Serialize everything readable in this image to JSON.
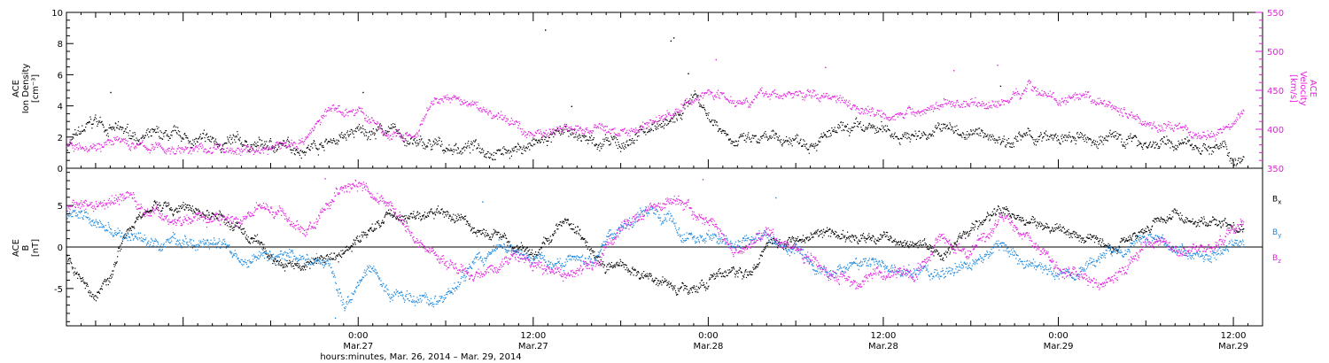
{
  "chart_data": [
    {
      "type": "scatter",
      "panel": "top",
      "ylabel_lines": [
        "ACE",
        "Ion Density",
        "[cm⁻³]"
      ],
      "ylim": [
        0,
        10
      ],
      "yticks": [
        0,
        2,
        4,
        6,
        8,
        10
      ],
      "y2label_lines": [
        "ACE",
        "Velocity",
        "[km/s]"
      ],
      "y2lim": [
        350,
        550
      ],
      "y2ticks": [
        350,
        400,
        450,
        500,
        550
      ],
      "xlim": [
        -20,
        62
      ],
      "series": [
        {
          "name": "Ion Density",
          "axis": "left",
          "color": "#000000",
          "keyframes": [
            [
              -20,
              1.5
            ],
            [
              -18,
              3.0
            ],
            [
              -16,
              2.2
            ],
            [
              -12,
              1.8
            ],
            [
              -8,
              1.5
            ],
            [
              -4,
              1.4
            ],
            [
              -2,
              1.8
            ],
            [
              0,
              2.3
            ],
            [
              2,
              2.5
            ],
            [
              4,
              1.5
            ],
            [
              6,
              1.3
            ],
            [
              8,
              1.4
            ],
            [
              10,
              1.2
            ],
            [
              12,
              1.5
            ],
            [
              14,
              2.2
            ],
            [
              16,
              1.8
            ],
            [
              18,
              1.4
            ],
            [
              20,
              2.7
            ],
            [
              22,
              3.2
            ],
            [
              23,
              5.0
            ],
            [
              24,
              3.4
            ],
            [
              26,
              1.8
            ],
            [
              28,
              1.7
            ],
            [
              30,
              1.9
            ],
            [
              32,
              2.1
            ],
            [
              34,
              2.4
            ],
            [
              36,
              2.4
            ],
            [
              38,
              2.1
            ],
            [
              40,
              2.6
            ],
            [
              42,
              2.2
            ],
            [
              44,
              2.0
            ],
            [
              46,
              2.0
            ],
            [
              48,
              1.8
            ],
            [
              50,
              1.8
            ],
            [
              52,
              2.0
            ],
            [
              54,
              1.7
            ],
            [
              56,
              1.5
            ],
            [
              59,
              1.4
            ],
            [
              60,
              0.6
            ],
            [
              60.7,
              0.8
            ]
          ],
          "noise": 0.5,
          "spikes": [
            [
              12.8,
              8.9
            ],
            [
              21.4,
              8.2
            ],
            [
              21.6,
              8.4
            ],
            [
              22.6,
              6.1
            ],
            [
              0.3,
              4.9
            ],
            [
              -17,
              4.9
            ],
            [
              14.6,
              4.0
            ],
            [
              44,
              5.3
            ]
          ]
        },
        {
          "name": "Velocity",
          "axis": "right",
          "color": "#e21fde",
          "keyframes": [
            [
              -20,
              383
            ],
            [
              -17,
              385
            ],
            [
              -15,
              378
            ],
            [
              -13,
              375
            ],
            [
              -10,
              375
            ],
            [
              -7,
              373
            ],
            [
              -4,
              385
            ],
            [
              -2,
              425
            ],
            [
              0,
              425
            ],
            [
              2,
              392
            ],
            [
              4,
              390
            ],
            [
              5,
              430
            ],
            [
              6,
              440
            ],
            [
              8,
              430
            ],
            [
              10,
              412
            ],
            [
              12,
              395
            ],
            [
              13,
              400
            ],
            [
              15,
              400
            ],
            [
              17,
              400
            ],
            [
              18,
              395
            ],
            [
              20,
              410
            ],
            [
              22,
              425
            ],
            [
              24,
              450
            ],
            [
              26,
              440
            ],
            [
              28,
              445
            ],
            [
              30,
              445
            ],
            [
              33,
              443
            ],
            [
              35,
              425
            ],
            [
              38,
              420
            ],
            [
              40,
              433
            ],
            [
              42,
              435
            ],
            [
              44,
              432
            ],
            [
              46,
              458
            ],
            [
              48,
              437
            ],
            [
              50,
              435
            ],
            [
              52,
              428
            ],
            [
              54,
              410
            ],
            [
              56,
              400
            ],
            [
              58,
              390
            ],
            [
              59,
              395
            ],
            [
              60,
              418
            ],
            [
              60.7,
              425
            ]
          ],
          "noise": 8,
          "spikes": [
            [
              24.5,
              490
            ],
            [
              32,
              480
            ],
            [
              43.8,
              483
            ],
            [
              40.8,
              476
            ]
          ]
        }
      ]
    },
    {
      "type": "scatter",
      "panel": "bottom",
      "ylabel_lines": [
        "ACE",
        "B",
        "[nT]"
      ],
      "ylim": [
        -9.5,
        9.5
      ],
      "yticks": [
        -5,
        0,
        5
      ],
      "zero_line": true,
      "xlim": [
        -20,
        62
      ],
      "series": [
        {
          "name": "Bx",
          "label": "B",
          "label_sub": "x",
          "color": "#000000",
          "keyframes": [
            [
              -20,
              -1
            ],
            [
              -19,
              -4
            ],
            [
              -18,
              -6
            ],
            [
              -17,
              -3
            ],
            [
              -16,
              2
            ],
            [
              -14,
              5
            ],
            [
              -12,
              4.5
            ],
            [
              -10,
              4
            ],
            [
              -8,
              2
            ],
            [
              -6,
              -1.5
            ],
            [
              -4,
              -2
            ],
            [
              -2,
              -1.5
            ],
            [
              0,
              1
            ],
            [
              2,
              4
            ],
            [
              4,
              3.7
            ],
            [
              6,
              4
            ],
            [
              7,
              3.5
            ],
            [
              8,
              2
            ],
            [
              10,
              1
            ],
            [
              12,
              -1
            ],
            [
              14,
              3
            ],
            [
              15,
              2
            ],
            [
              17,
              -2
            ],
            [
              19,
              -3
            ],
            [
              21,
              -4
            ],
            [
              22,
              -5
            ],
            [
              24,
              -4
            ],
            [
              26,
              -3
            ],
            [
              27,
              -3
            ],
            [
              28,
              1
            ],
            [
              30,
              1
            ],
            [
              32,
              2
            ],
            [
              34,
              1
            ],
            [
              36,
              1
            ],
            [
              38,
              1
            ],
            [
              40,
              -1
            ],
            [
              42,
              2
            ],
            [
              44,
              4.5
            ],
            [
              46,
              3
            ],
            [
              48,
              2
            ],
            [
              50,
              1
            ],
            [
              52,
              0
            ],
            [
              54,
              3
            ],
            [
              56,
              4
            ],
            [
              58,
              3
            ],
            [
              60,
              2.5
            ],
            [
              60.7,
              2
            ]
          ],
          "noise": 0.8
        },
        {
          "name": "By",
          "label": "B",
          "label_sub": "y",
          "color": "#1a88e0",
          "keyframes": [
            [
              -20,
              4
            ],
            [
              -18,
              3
            ],
            [
              -16,
              1
            ],
            [
              -14,
              0
            ],
            [
              -12,
              1
            ],
            [
              -10,
              0
            ],
            [
              -8,
              -1
            ],
            [
              -6,
              -1.5
            ],
            [
              -4,
              -1
            ],
            [
              -2,
              -2
            ],
            [
              -1,
              -6
            ],
            [
              0,
              -4
            ],
            [
              1,
              -2
            ],
            [
              2,
              -5
            ],
            [
              4,
              -7
            ],
            [
              6,
              -6
            ],
            [
              8,
              -2
            ],
            [
              10,
              0
            ],
            [
              12,
              -1.5
            ],
            [
              14,
              -2
            ],
            [
              16,
              -1
            ],
            [
              18,
              3
            ],
            [
              20,
              4
            ],
            [
              22,
              2
            ],
            [
              24,
              1
            ],
            [
              26,
              0
            ],
            [
              28,
              1
            ],
            [
              30,
              -1
            ],
            [
              32,
              -3
            ],
            [
              34,
              -2
            ],
            [
              36,
              -2
            ],
            [
              38,
              -3
            ],
            [
              40,
              -3.5
            ],
            [
              42,
              -2
            ],
            [
              44,
              0
            ],
            [
              46,
              -2
            ],
            [
              48,
              -3
            ],
            [
              50,
              -2
            ],
            [
              52,
              0
            ],
            [
              54,
              1
            ],
            [
              56,
              0
            ],
            [
              58,
              -1
            ],
            [
              60,
              0
            ],
            [
              60.7,
              0.5
            ]
          ],
          "noise": 0.9,
          "spikes": [
            [
              -1.6,
              -8.5
            ],
            [
              8.5,
              5.5
            ],
            [
              28.6,
              6.0
            ]
          ]
        },
        {
          "name": "Bz",
          "label": "B",
          "label_sub": "z",
          "color": "#e21fde",
          "keyframes": [
            [
              -20,
              5
            ],
            [
              -18,
              5.5
            ],
            [
              -16,
              6.5
            ],
            [
              -14,
              4
            ],
            [
              -12,
              3.5
            ],
            [
              -10,
              3.5
            ],
            [
              -8,
              4
            ],
            [
              -6,
              4.5
            ],
            [
              -4,
              2
            ],
            [
              -2,
              5
            ],
            [
              -1,
              7
            ],
            [
              0,
              7.5
            ],
            [
              1,
              6.5
            ],
            [
              2,
              5
            ],
            [
              3,
              3
            ],
            [
              4,
              1
            ],
            [
              6,
              -2
            ],
            [
              8,
              -3
            ],
            [
              10,
              -1.5
            ],
            [
              12,
              -2
            ],
            [
              14,
              -3
            ],
            [
              16,
              -2
            ],
            [
              17,
              0
            ],
            [
              18,
              2
            ],
            [
              20,
              5
            ],
            [
              22,
              6
            ],
            [
              24,
              3
            ],
            [
              26,
              0
            ],
            [
              28,
              2
            ],
            [
              30,
              0
            ],
            [
              32,
              -2
            ],
            [
              34,
              -4
            ],
            [
              36,
              -3
            ],
            [
              38,
              -3
            ],
            [
              40,
              1
            ],
            [
              42,
              -1
            ],
            [
              44,
              4
            ],
            [
              46,
              1
            ],
            [
              48,
              -3
            ],
            [
              50,
              -4.5
            ],
            [
              52,
              -4
            ],
            [
              54,
              1
            ],
            [
              56,
              0
            ],
            [
              58,
              -0.5
            ],
            [
              60,
              2
            ],
            [
              60.7,
              3
            ]
          ],
          "noise": 0.9,
          "spikes": [
            [
              23.6,
              8.2
            ],
            [
              -2.3,
              8.3
            ]
          ]
        }
      ]
    }
  ],
  "x_ticks": [
    {
      "x": 0,
      "time": "0:00",
      "date": "Mar.27"
    },
    {
      "x": 12,
      "time": "12:00",
      "date": "Mar.27"
    },
    {
      "x": 24,
      "time": "0:00",
      "date": "Mar.28"
    },
    {
      "x": 36,
      "time": "12:00",
      "date": "Mar.28"
    },
    {
      "x": 48,
      "time": "0:00",
      "date": "Mar.29"
    },
    {
      "x": 60,
      "time": "12:00",
      "date": "Mar.29"
    }
  ],
  "xlabel": "hours:minutes, Mar. 26, 2014 – Mar. 29, 2014"
}
